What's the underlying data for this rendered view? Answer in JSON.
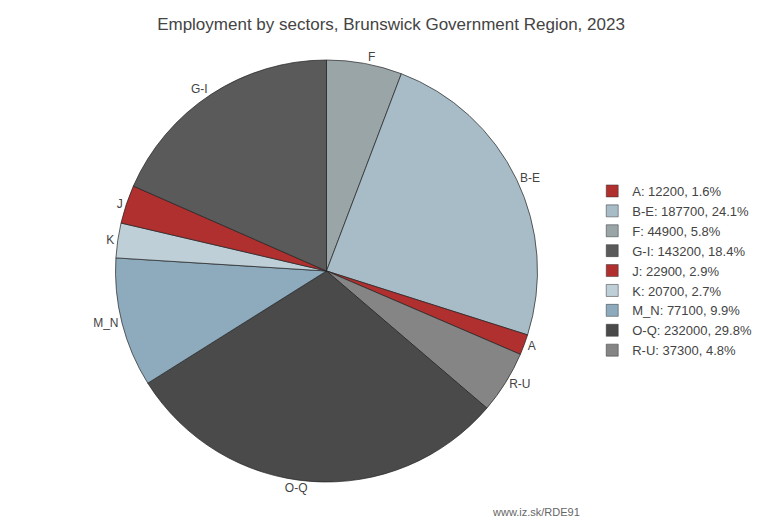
{
  "chart_data": {
    "type": "pie",
    "title": "Employment by sectors, Brunswick Government Region, 2023",
    "categories": [
      "F",
      "B-E",
      "A",
      "R-U",
      "O-Q",
      "M_N",
      "K",
      "J",
      "G-I"
    ],
    "values": [
      44900,
      187700,
      12200,
      37300,
      232000,
      77100,
      20700,
      22900,
      143200
    ],
    "colors": [
      "#9aa5a8",
      "#a8bcc8",
      "#b03030",
      "#858585",
      "#4a4a4a",
      "#8eabbe",
      "#bfcfd8",
      "#b03030",
      "#5a5a5a"
    ],
    "legend": "right",
    "legend_entries": [
      {
        "name": "A: 12200, 1.6%",
        "color": "#b03030"
      },
      {
        "name": "B-E: 187700, 24.1%",
        "color": "#a8bcc8"
      },
      {
        "name": "F: 44900, 5.8%",
        "color": "#9aa5a8"
      },
      {
        "name": "G-I: 143200, 18.4%",
        "color": "#5a5a5a"
      },
      {
        "name": "J: 22900, 2.9%",
        "color": "#b03030"
      },
      {
        "name": "K: 20700, 2.7%",
        "color": "#bfcfd8"
      },
      {
        "name": "M_N: 77100, 9.9%",
        "color": "#8eabbe"
      },
      {
        "name": "O-Q: 232000, 29.8%",
        "color": "#4a4a4a"
      },
      {
        "name": "R-U: 37300, 4.8%",
        "color": "#858585"
      }
    ],
    "annotations": [
      "www.iz.sk/RDE91"
    ]
  }
}
